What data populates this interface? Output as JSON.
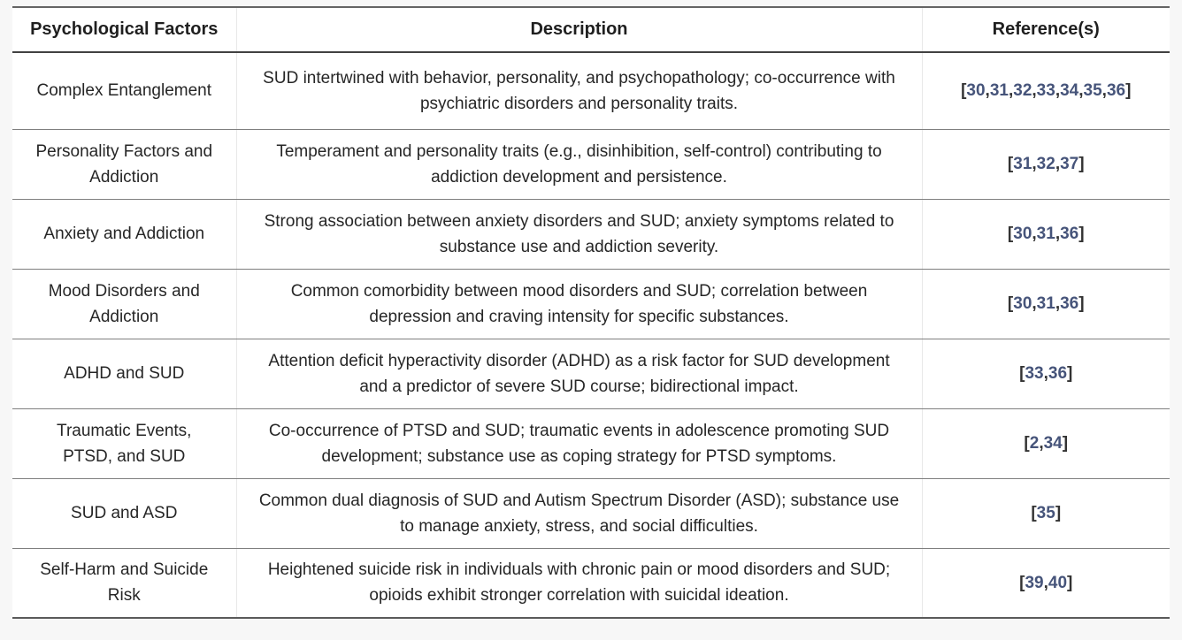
{
  "table": {
    "columns": [
      {
        "label": "Psychological Factors"
      },
      {
        "label": "Description"
      },
      {
        "label": "Reference(s)"
      }
    ],
    "reference_open_bracket": "[",
    "reference_close_bracket": "]",
    "reference_separator": ",",
    "rows": [
      {
        "factor_lines": [
          "Complex Entanglement"
        ],
        "description_lines": [
          "SUD intertwined with behavior, personality, and psychopathology; co-occurrence with",
          "psychiatric disorders and personality traits."
        ],
        "references": [
          "30",
          "31",
          "32",
          "33",
          "34",
          "35",
          "36"
        ]
      },
      {
        "factor_lines": [
          "Personality Factors and",
          "Addiction"
        ],
        "description_lines": [
          "Temperament and personality traits (e.g., disinhibition, self-control) contributing to",
          "addiction development and persistence."
        ],
        "references": [
          "31",
          "32",
          "37"
        ]
      },
      {
        "factor_lines": [
          "Anxiety and Addiction"
        ],
        "description_lines": [
          "Strong association between anxiety disorders and SUD; anxiety symptoms related to",
          "substance use and addiction severity."
        ],
        "references": [
          "30",
          "31",
          "36"
        ]
      },
      {
        "factor_lines": [
          "Mood Disorders and",
          "Addiction"
        ],
        "description_lines": [
          "Common comorbidity between mood disorders and SUD; correlation between",
          "depression and craving intensity for specific substances."
        ],
        "references": [
          "30",
          "31",
          "36"
        ]
      },
      {
        "factor_lines": [
          "ADHD and SUD"
        ],
        "description_lines": [
          "Attention deficit hyperactivity disorder (ADHD) as a risk factor for SUD development",
          "and a predictor of severe SUD course; bidirectional impact."
        ],
        "references": [
          "33",
          "36"
        ]
      },
      {
        "factor_lines": [
          "Traumatic Events,",
          "PTSD, and SUD"
        ],
        "description_lines": [
          "Co-occurrence of PTSD and SUD; traumatic events in adolescence promoting SUD",
          "development; substance use as coping strategy for PTSD symptoms."
        ],
        "references": [
          "2",
          "34"
        ]
      },
      {
        "factor_lines": [
          "SUD and ASD"
        ],
        "description_lines": [
          "Common dual diagnosis of SUD and Autism Spectrum Disorder (ASD); substance use",
          "to manage anxiety, stress, and social difficulties."
        ],
        "references": [
          "35"
        ]
      },
      {
        "factor_lines": [
          "Self-Harm and Suicide",
          "Risk"
        ],
        "description_lines": [
          "Heightened suicide risk in individuals with chronic pain or mood disorders and SUD;",
          "opioids exhibit stronger correlation with suicidal ideation."
        ],
        "references": [
          "39",
          "40"
        ]
      }
    ]
  },
  "colors": {
    "page_background": "#f7f7f7",
    "table_background": "#ffffff",
    "text": "#262626",
    "reference_link": "#46547A",
    "reference_separator_color": "#333333"
  }
}
